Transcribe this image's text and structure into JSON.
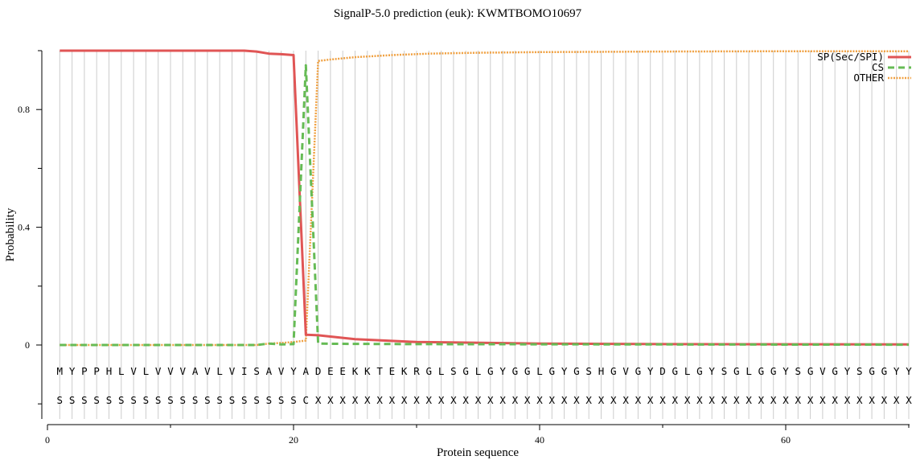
{
  "colors": {
    "sp": "#e05555",
    "cs": "#66bb55",
    "other": "#f0a040",
    "grid": "#cccccc",
    "axis": "#000000"
  },
  "chart_data": {
    "type": "line",
    "title": "SignalP-5.0 prediction (euk):  KWMTBOMO10697",
    "xlabel": "Protein sequence",
    "ylabel": "Probability",
    "xlim": [
      0,
      70
    ],
    "ylim": [
      -0.25,
      1.0
    ],
    "xticks": [
      "0",
      "20",
      "40",
      "60"
    ],
    "yticks": [
      "0",
      "0.4",
      "0.8"
    ],
    "grid": "vertical lines at each residue",
    "legend_position": "top-right",
    "sequence": [
      "M",
      "Y",
      "P",
      "P",
      "H",
      "L",
      "V",
      "L",
      "V",
      "V",
      "V",
      "A",
      "V",
      "L",
      "V",
      "I",
      "S",
      "A",
      "V",
      "Y",
      "A",
      "D",
      "E",
      "E",
      "K",
      "K",
      "T",
      "E",
      "K",
      "R",
      "G",
      "L",
      "S",
      "G",
      "L",
      "G",
      "Y",
      "G",
      "G",
      "L",
      "G",
      "Y",
      "G",
      "S",
      "H",
      "G",
      "V",
      "G",
      "Y",
      "D",
      "G",
      "L",
      "G",
      "Y",
      "S",
      "G",
      "L",
      "G",
      "G",
      "Y",
      "S",
      "G",
      "V",
      "G",
      "Y",
      "S",
      "G",
      "G",
      "Y",
      "Y"
    ],
    "labels": [
      "S",
      "S",
      "S",
      "S",
      "S",
      "S",
      "S",
      "S",
      "S",
      "S",
      "S",
      "S",
      "S",
      "S",
      "S",
      "S",
      "S",
      "S",
      "S",
      "S",
      "C",
      "X",
      "X",
      "X",
      "X",
      "X",
      "X",
      "X",
      "X",
      "X",
      "X",
      "X",
      "X",
      "X",
      "X",
      "X",
      "X",
      "X",
      "X",
      "X",
      "X",
      "X",
      "X",
      "X",
      "X",
      "X",
      "X",
      "X",
      "X",
      "X",
      "X",
      "X",
      "X",
      "X",
      "X",
      "X",
      "X",
      "X",
      "X",
      "X",
      "X",
      "X",
      "X",
      "X",
      "X",
      "X",
      "X",
      "X",
      "X",
      "X"
    ],
    "series": [
      {
        "name": "SP(Sec/SPI)",
        "style": "solid",
        "x": [
          1,
          15,
          16,
          17,
          18,
          19,
          20,
          21,
          22,
          25,
          30,
          40,
          50,
          70
        ],
        "y": [
          1.0,
          1.0,
          1.0,
          0.997,
          0.99,
          0.988,
          0.985,
          0.035,
          0.033,
          0.02,
          0.01,
          0.005,
          0.003,
          0.002
        ]
      },
      {
        "name": "CS",
        "style": "dashed",
        "x": [
          1,
          17,
          18,
          19,
          20,
          21,
          22,
          23,
          30,
          50,
          70
        ],
        "y": [
          0.0,
          0.0,
          0.005,
          0.002,
          0.003,
          0.95,
          0.005,
          0.004,
          0.003,
          0.002,
          0.001
        ]
      },
      {
        "name": "OTHER",
        "style": "dotted",
        "x": [
          1,
          17,
          18,
          19,
          20,
          21,
          22,
          23,
          25,
          28,
          31,
          35,
          40,
          50,
          60,
          70
        ],
        "y": [
          0.0,
          0.0,
          0.005,
          0.007,
          0.01,
          0.015,
          0.965,
          0.97,
          0.978,
          0.985,
          0.99,
          0.993,
          0.995,
          0.997,
          0.998,
          0.998
        ]
      }
    ]
  }
}
